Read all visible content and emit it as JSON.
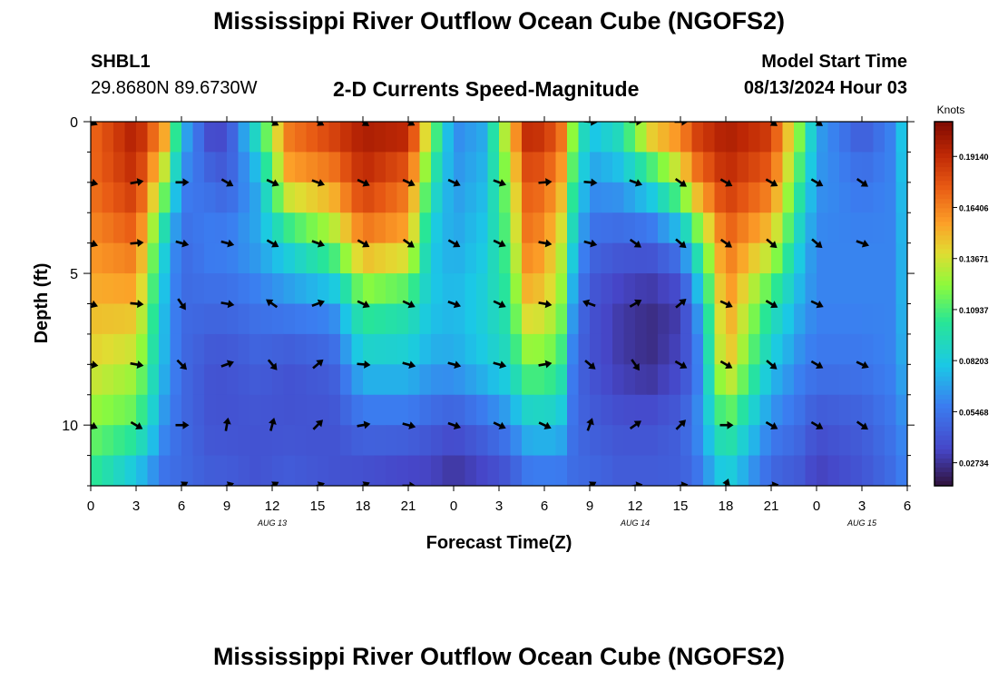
{
  "header": {
    "title": "Mississippi River Outflow Ocean Cube (NGOFS2)",
    "station": "SHBL1",
    "coords": "29.8680N  89.6730W",
    "subtitle": "2-D Currents Speed-Magnitude",
    "model_start_label": "Model Start Time",
    "model_start_value": "08/13/2024 Hour 03"
  },
  "footer": {
    "title": "Mississippi River Outflow Ocean Cube (NGOFS2)"
  },
  "chart_data": {
    "type": "heatmap",
    "title": "2-D Currents Speed-Magnitude",
    "xlabel": "Forecast Time(Z)",
    "ylabel": "Depth (ft)",
    "colorbar_label": "Knots",
    "colorbar_ticks": [
      0.02734,
      0.05468,
      0.08203,
      0.10937,
      0.13671,
      0.16406,
      0.1914
    ],
    "colorbar_range": [
      0.015,
      0.21
    ],
    "x_hours_range": [
      0,
      54
    ],
    "x_tick_hours": [
      0,
      3,
      6,
      9,
      12,
      15,
      18,
      21,
      24,
      27,
      30,
      33,
      36,
      39,
      42,
      45,
      48,
      51,
      54
    ],
    "x_tick_labels": [
      "0",
      "3",
      "6",
      "9",
      "12",
      "15",
      "18",
      "21",
      "0",
      "3",
      "6",
      "9",
      "12",
      "15",
      "18",
      "21",
      "0",
      "3",
      "6"
    ],
    "date_labels": [
      {
        "hour": 12,
        "text": "AUG 13"
      },
      {
        "hour": 36,
        "text": "AUG 14"
      },
      {
        "hour": 51,
        "text": "AUG 15"
      }
    ],
    "y_range": [
      0,
      12
    ],
    "y_ticks": [
      0,
      5,
      10
    ],
    "y_tick_labels": [
      "0",
      "5",
      "10"
    ],
    "y_reversed": true,
    "depths_ft": [
      0,
      2,
      4,
      6,
      8,
      10,
      12
    ],
    "speed_profile": [
      {
        "hour": 0,
        "values": [
          0.17,
          0.17,
          0.16,
          0.15,
          0.14,
          0.12,
          0.1
        ]
      },
      {
        "hour": 3,
        "values": [
          0.2,
          0.19,
          0.17,
          0.15,
          0.13,
          0.11,
          0.07
        ]
      },
      {
        "hour": 5,
        "values": [
          0.16,
          0.12,
          0.08,
          0.07,
          0.07,
          0.06,
          0.05
        ]
      },
      {
        "hour": 6,
        "values": [
          0.08,
          0.06,
          0.05,
          0.05,
          0.05,
          0.05,
          0.05
        ]
      },
      {
        "hour": 8,
        "values": [
          0.03,
          0.05,
          0.06,
          0.05,
          0.04,
          0.04,
          0.045
        ]
      },
      {
        "hour": 9,
        "values": [
          0.035,
          0.045,
          0.06,
          0.05,
          0.04,
          0.04,
          0.045
        ]
      },
      {
        "hour": 11,
        "values": [
          0.1,
          0.07,
          0.07,
          0.055,
          0.045,
          0.04,
          0.04
        ]
      },
      {
        "hour": 13,
        "values": [
          0.17,
          0.15,
          0.09,
          0.06,
          0.04,
          0.04,
          0.045
        ]
      },
      {
        "hour": 16,
        "values": [
          0.19,
          0.16,
          0.12,
          0.065,
          0.045,
          0.04,
          0.04
        ]
      },
      {
        "hour": 18,
        "values": [
          0.2,
          0.19,
          0.16,
          0.11,
          0.08,
          0.05,
          0.035
        ]
      },
      {
        "hour": 21,
        "values": [
          0.2,
          0.17,
          0.15,
          0.1,
          0.08,
          0.05,
          0.03
        ]
      },
      {
        "hour": 22.5,
        "values": [
          0.13,
          0.1,
          0.08,
          0.08,
          0.07,
          0.045,
          0.03
        ]
      },
      {
        "hour": 24,
        "values": [
          0.06,
          0.065,
          0.07,
          0.075,
          0.07,
          0.04,
          0.025
        ]
      },
      {
        "hour": 26,
        "values": [
          0.07,
          0.075,
          0.08,
          0.085,
          0.08,
          0.05,
          0.03
        ]
      },
      {
        "hour": 27.5,
        "values": [
          0.14,
          0.12,
          0.11,
          0.1,
          0.09,
          0.06,
          0.035
        ]
      },
      {
        "hour": 29,
        "values": [
          0.2,
          0.18,
          0.17,
          0.15,
          0.12,
          0.08,
          0.05
        ]
      },
      {
        "hour": 31,
        "values": [
          0.18,
          0.16,
          0.14,
          0.13,
          0.11,
          0.08,
          0.05
        ]
      },
      {
        "hour": 32,
        "values": [
          0.12,
          0.1,
          0.08,
          0.06,
          0.05,
          0.05,
          0.05
        ]
      },
      {
        "hour": 33,
        "values": [
          0.08,
          0.065,
          0.05,
          0.04,
          0.04,
          0.045,
          0.05
        ]
      },
      {
        "hour": 35,
        "values": [
          0.1,
          0.07,
          0.045,
          0.03,
          0.03,
          0.04,
          0.045
        ]
      },
      {
        "hour": 37,
        "values": [
          0.16,
          0.09,
          0.045,
          0.025,
          0.025,
          0.04,
          0.045
        ]
      },
      {
        "hour": 39,
        "values": [
          0.17,
          0.13,
          0.06,
          0.03,
          0.035,
          0.045,
          0.045
        ]
      },
      {
        "hour": 40,
        "values": [
          0.19,
          0.16,
          0.1,
          0.06,
          0.05,
          0.06,
          0.05
        ]
      },
      {
        "hour": 42,
        "values": [
          0.2,
          0.19,
          0.17,
          0.16,
          0.15,
          0.11,
          0.08
        ]
      },
      {
        "hour": 45,
        "values": [
          0.19,
          0.17,
          0.14,
          0.1,
          0.08,
          0.06,
          0.045
        ]
      },
      {
        "hour": 47,
        "values": [
          0.12,
          0.1,
          0.08,
          0.07,
          0.06,
          0.05,
          0.04
        ]
      },
      {
        "hour": 48,
        "values": [
          0.07,
          0.065,
          0.06,
          0.06,
          0.055,
          0.04,
          0.03
        ]
      },
      {
        "hour": 51,
        "values": [
          0.04,
          0.055,
          0.06,
          0.06,
          0.055,
          0.045,
          0.04
        ]
      },
      {
        "hour": 53,
        "values": [
          0.06,
          0.06,
          0.06,
          0.06,
          0.06,
          0.055,
          0.05
        ]
      },
      {
        "hour": 54,
        "values": [
          0.09,
          0.085,
          0.08,
          0.08,
          0.075,
          0.065,
          0.06
        ]
      }
    ],
    "direction_hours": [
      0,
      3,
      6,
      9,
      12,
      15,
      18,
      21,
      24,
      27,
      30,
      33,
      36,
      39,
      42,
      45,
      48,
      51
    ],
    "direction_rows": [
      {
        "depth": 0,
        "angles": [
          25,
          null,
          null,
          null,
          30,
          30,
          35,
          30,
          null,
          null,
          null,
          5,
          0,
          0,
          null,
          35,
          35,
          null
        ]
      },
      {
        "depth": 2,
        "angles": [
          15,
          -10,
          0,
          30,
          25,
          20,
          25,
          25,
          25,
          20,
          -5,
          5,
          20,
          35,
          30,
          30,
          30,
          35
        ]
      },
      {
        "depth": 4,
        "angles": [
          20,
          -5,
          15,
          15,
          30,
          20,
          30,
          35,
          30,
          25,
          10,
          15,
          35,
          40,
          35,
          40,
          40,
          20
        ]
      },
      {
        "depth": 6,
        "angles": [
          20,
          5,
          55,
          10,
          215,
          -20,
          25,
          25,
          20,
          25,
          10,
          200,
          -30,
          -40,
          25,
          30,
          25,
          null
        ]
      },
      {
        "depth": 8,
        "angles": [
          10,
          10,
          45,
          -20,
          50,
          -40,
          5,
          15,
          15,
          15,
          -10,
          40,
          55,
          30,
          30,
          40,
          30,
          25
        ]
      },
      {
        "depth": 10,
        "angles": [
          25,
          30,
          0,
          -80,
          -75,
          -45,
          -10,
          15,
          20,
          25,
          25,
          -70,
          -35,
          -45,
          0,
          30,
          30,
          35
        ]
      },
      {
        "depth": 12,
        "angles": [
          null,
          null,
          -30,
          -20,
          -30,
          -20,
          -25,
          0,
          null,
          null,
          null,
          -30,
          -10,
          -10,
          -70,
          -10,
          null,
          null
        ]
      }
    ]
  }
}
